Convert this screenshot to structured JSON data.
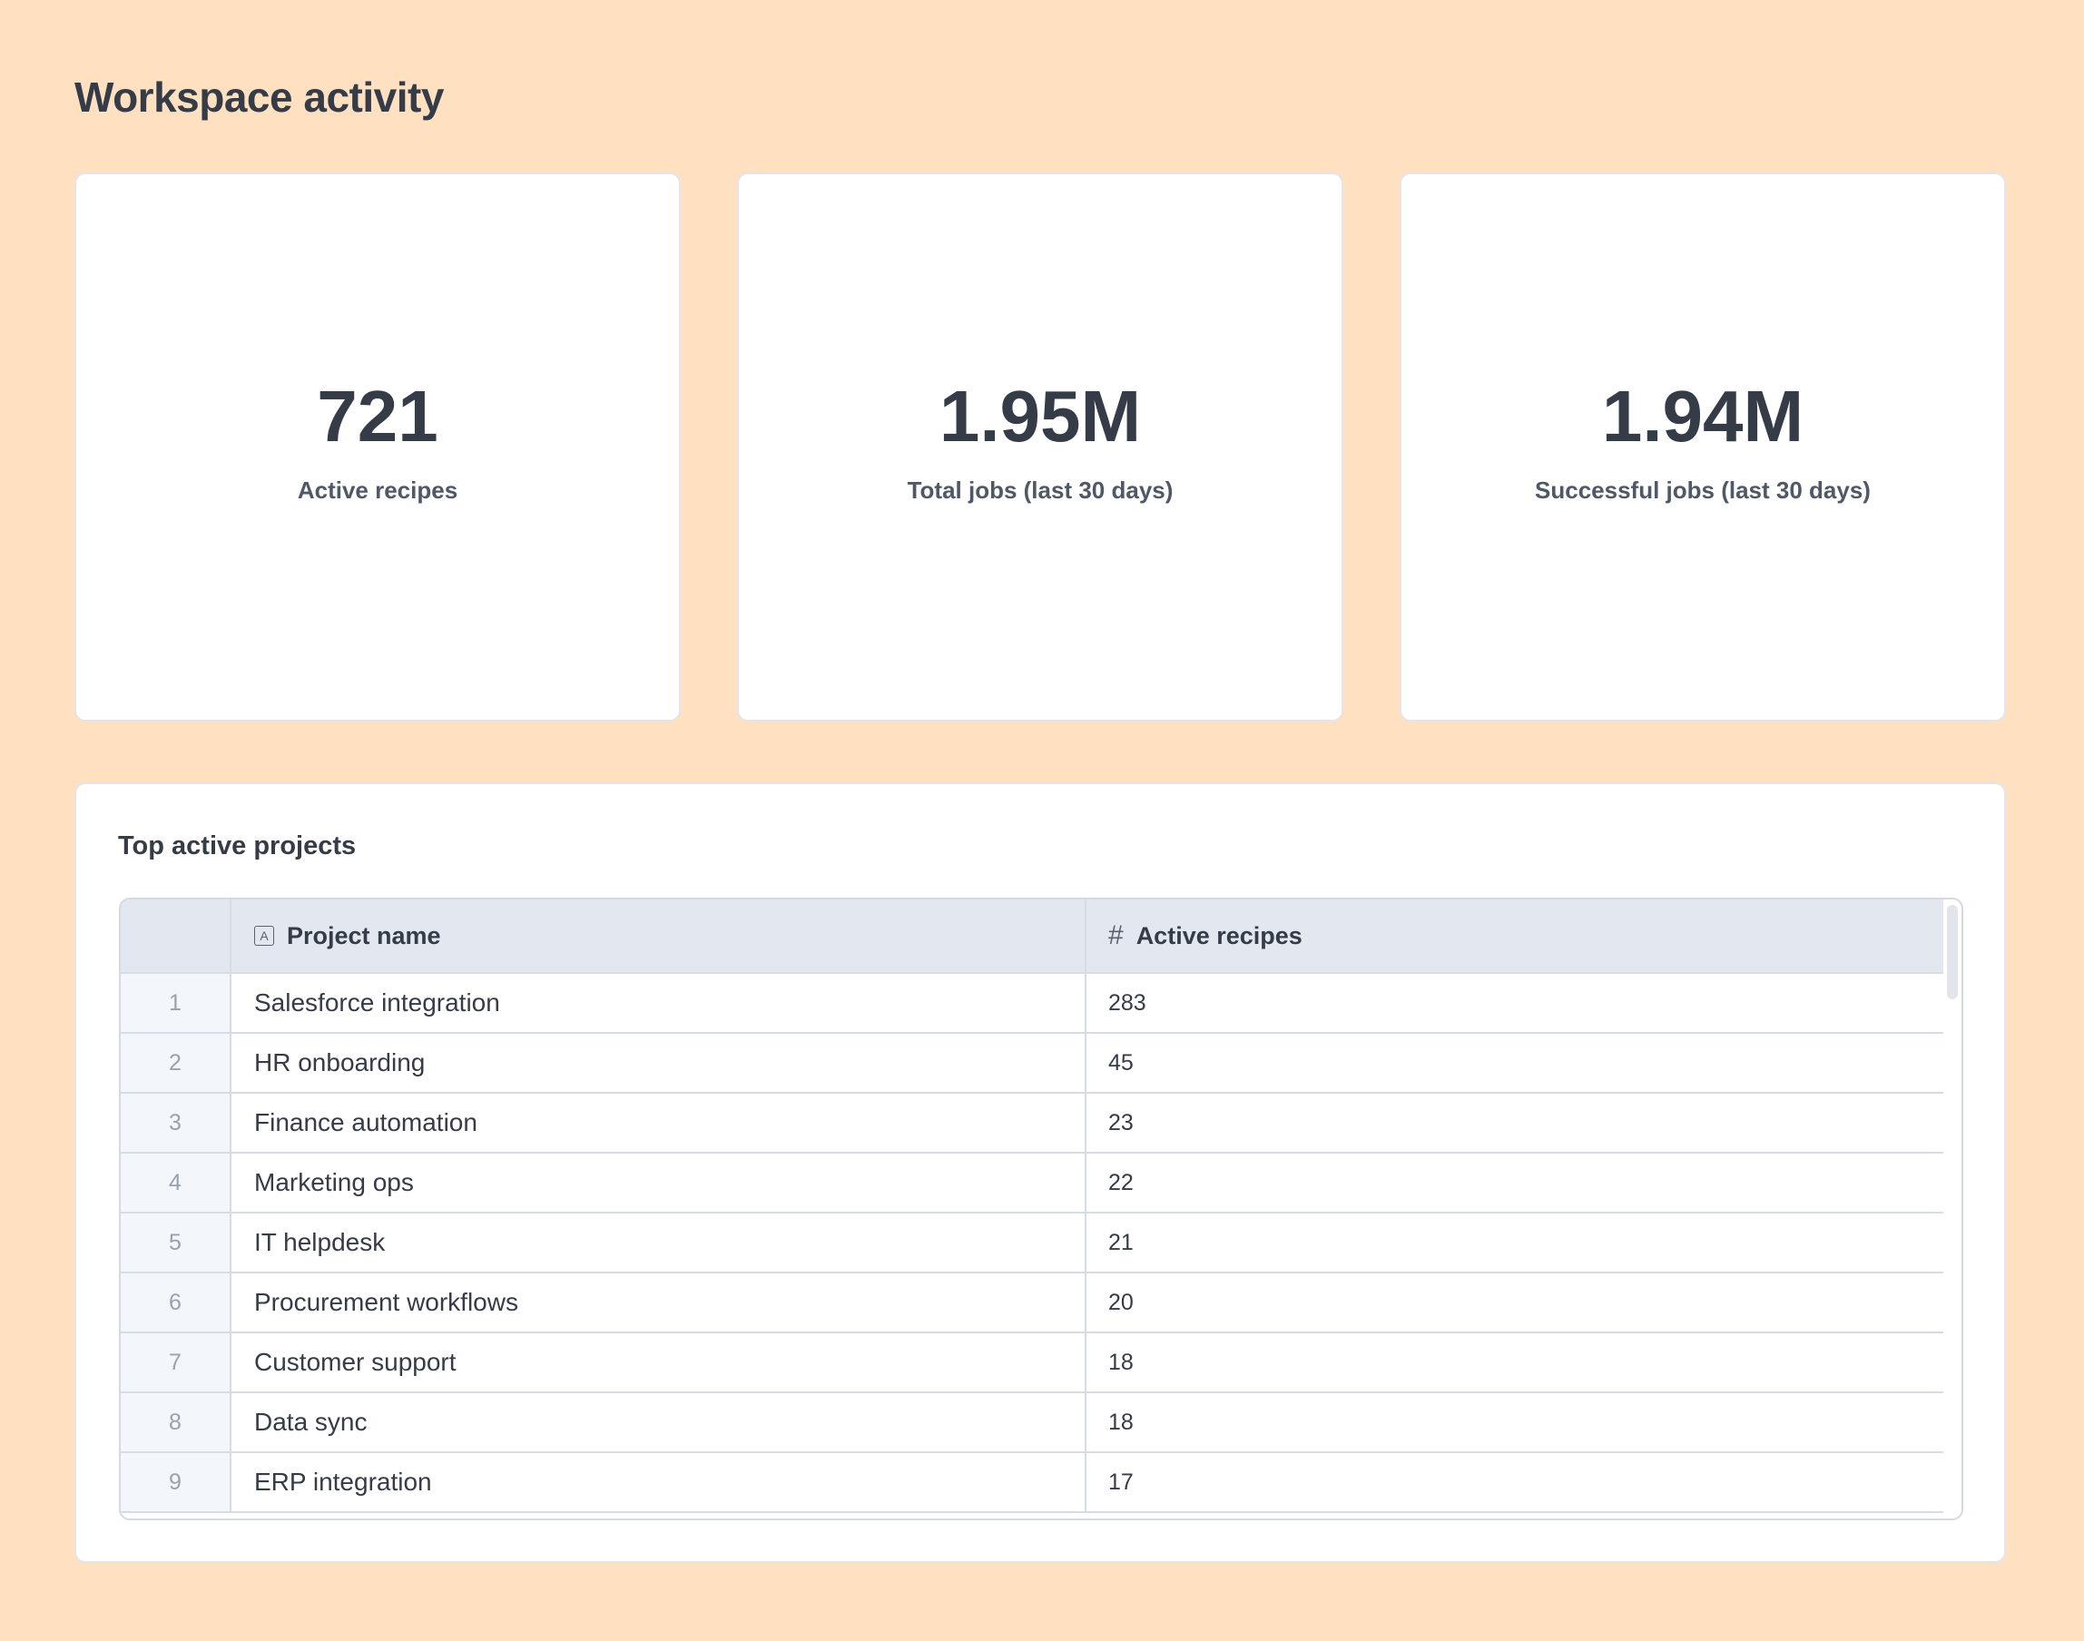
{
  "page": {
    "title": "Workspace activity"
  },
  "stats": [
    {
      "value": "721",
      "label": "Active recipes"
    },
    {
      "value": "1.95M",
      "label": "Total jobs (last 30 days)"
    },
    {
      "value": "1.94M",
      "label": "Successful jobs (last 30 days)"
    }
  ],
  "projects": {
    "title": "Top active projects",
    "columns": [
      "Project name",
      "Active recipes"
    ],
    "column_icons": [
      "text-type-icon",
      "number-type-icon"
    ],
    "rows": [
      {
        "index": "1",
        "name": "Salesforce integration",
        "recipes": "283"
      },
      {
        "index": "2",
        "name": "HR onboarding",
        "recipes": "45"
      },
      {
        "index": "3",
        "name": "Finance automation",
        "recipes": "23"
      },
      {
        "index": "4",
        "name": "Marketing ops",
        "recipes": "22"
      },
      {
        "index": "5",
        "name": "IT helpdesk",
        "recipes": "21"
      },
      {
        "index": "6",
        "name": "Procurement workflows",
        "recipes": "20"
      },
      {
        "index": "7",
        "name": "Customer support",
        "recipes": "18"
      },
      {
        "index": "8",
        "name": "Data sync",
        "recipes": "18"
      },
      {
        "index": "9",
        "name": "ERP integration",
        "recipes": "17"
      }
    ]
  }
}
